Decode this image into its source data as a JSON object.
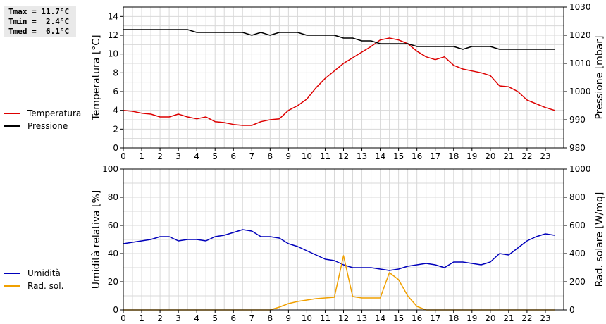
{
  "stats": {
    "tmax": "Tmax = 11.7°C",
    "tmin": "Tmin =  2.4°C",
    "tmed": "Tmed =  6.1°C"
  },
  "colors": {
    "temperature": "#dd0000",
    "pressure": "#000000",
    "humidity": "#0000bb",
    "radiation": "#f0a000",
    "grid": "#d8d8d8"
  },
  "chart_data": [
    {
      "type": "line",
      "xlim": [
        0,
        24
      ],
      "x_ticks": [
        0,
        1,
        2,
        3,
        4,
        5,
        6,
        7,
        8,
        9,
        10,
        11,
        12,
        13,
        14,
        15,
        16,
        17,
        18,
        19,
        20,
        21,
        22,
        23
      ],
      "grid": true,
      "ylabel": "Temperatura [°C]",
      "ylim": [
        0,
        15
      ],
      "y_ticks": [
        0,
        2,
        4,
        6,
        8,
        10,
        12,
        14
      ],
      "ylabel_right": "Pressione [mbar]",
      "ylim_right": [
        980,
        1030
      ],
      "y_ticks_right": [
        980,
        990,
        1000,
        1010,
        1020,
        1030
      ],
      "legend": [
        "Temperatura",
        "Pressione"
      ],
      "series": [
        {
          "name": "Temperatura",
          "axis": "left",
          "x": [
            0,
            0.5,
            1,
            1.5,
            2,
            2.5,
            3,
            3.5,
            4,
            4.5,
            5,
            5.5,
            6,
            6.5,
            7,
            7.5,
            8,
            8.5,
            9,
            9.5,
            10,
            10.5,
            11,
            11.5,
            12,
            12.5,
            13,
            13.5,
            14,
            14.5,
            15,
            15.5,
            16,
            16.5,
            17,
            17.5,
            18,
            18.5,
            19,
            19.5,
            20,
            20.5,
            21,
            21.5,
            22,
            22.5,
            23,
            23.5
          ],
          "y": [
            4.0,
            3.9,
            3.7,
            3.6,
            3.3,
            3.3,
            3.6,
            3.3,
            3.1,
            3.3,
            2.8,
            2.7,
            2.5,
            2.4,
            2.4,
            2.8,
            3.0,
            3.1,
            4.0,
            4.5,
            5.2,
            6.4,
            7.4,
            8.2,
            9.0,
            9.6,
            10.2,
            10.8,
            11.5,
            11.7,
            11.5,
            11.1,
            10.3,
            9.7,
            9.4,
            9.7,
            8.8,
            8.4,
            8.2,
            8.0,
            7.7,
            6.6,
            6.5,
            6.0,
            5.1,
            4.7,
            4.3,
            4.0
          ]
        },
        {
          "name": "Pressione",
          "axis": "right",
          "x": [
            0,
            0.5,
            1,
            1.5,
            2,
            2.5,
            3,
            3.5,
            4,
            4.5,
            5,
            5.5,
            6,
            6.5,
            7,
            7.5,
            8,
            8.5,
            9,
            9.5,
            10,
            10.5,
            11,
            11.5,
            12,
            12.5,
            13,
            13.5,
            14,
            14.5,
            15,
            15.5,
            16,
            16.5,
            17,
            17.5,
            18,
            18.5,
            19,
            19.5,
            20,
            20.5,
            21,
            21.5,
            22,
            22.5,
            23,
            23.5
          ],
          "y": [
            1022,
            1022,
            1022,
            1022,
            1022,
            1022,
            1022,
            1022,
            1021,
            1021,
            1021,
            1021,
            1021,
            1021,
            1020,
            1021,
            1020,
            1021,
            1021,
            1021,
            1020,
            1020,
            1020,
            1020,
            1019,
            1019,
            1018,
            1018,
            1017,
            1017,
            1017,
            1017,
            1016,
            1016,
            1016,
            1016,
            1016,
            1015,
            1016,
            1016,
            1016,
            1015,
            1015,
            1015,
            1015,
            1015,
            1015,
            1015
          ]
        }
      ]
    },
    {
      "type": "line",
      "xlim": [
        0,
        24
      ],
      "x_ticks": [
        0,
        1,
        2,
        3,
        4,
        5,
        6,
        7,
        8,
        9,
        10,
        11,
        12,
        13,
        14,
        15,
        16,
        17,
        18,
        19,
        20,
        21,
        22,
        23
      ],
      "grid": true,
      "ylabel": "Umidità relativa [%]",
      "ylim": [
        0,
        100
      ],
      "y_ticks": [
        0,
        20,
        40,
        60,
        80,
        100
      ],
      "ylabel_right": "Rad. solare [W/mq]",
      "ylim_right": [
        0,
        1000
      ],
      "y_ticks_right": [
        0,
        200,
        400,
        600,
        800,
        1000
      ],
      "legend": [
        "Umidità",
        "Rad. sol."
      ],
      "series": [
        {
          "name": "Umidità",
          "axis": "left",
          "x": [
            0,
            0.5,
            1,
            1.5,
            2,
            2.5,
            3,
            3.5,
            4,
            4.5,
            5,
            5.5,
            6,
            6.5,
            7,
            7.5,
            8,
            8.5,
            9,
            9.5,
            10,
            10.5,
            11,
            11.5,
            12,
            12.5,
            13,
            13.5,
            14,
            14.5,
            15,
            15.5,
            16,
            16.5,
            17,
            17.5,
            18,
            18.5,
            19,
            19.5,
            20,
            20.5,
            21,
            21.5,
            22,
            22.5,
            23,
            23.5
          ],
          "y": [
            47,
            48,
            49,
            50,
            52,
            52,
            49,
            50,
            50,
            49,
            52,
            53,
            55,
            57,
            56,
            52,
            52,
            51,
            47,
            45,
            42,
            39,
            36,
            35,
            32,
            30,
            30,
            30,
            29,
            28,
            29,
            31,
            32,
            33,
            32,
            30,
            34,
            34,
            33,
            32,
            34,
            40,
            39,
            44,
            49,
            52,
            54,
            53
          ]
        },
        {
          "name": "Rad. sol.",
          "axis": "right",
          "x": [
            0,
            0.5,
            1,
            1.5,
            2,
            2.5,
            3,
            3.5,
            4,
            4.5,
            5,
            5.5,
            6,
            6.5,
            7,
            7.5,
            8,
            8.5,
            9,
            9.5,
            10,
            10.5,
            11,
            11.5,
            12,
            12.5,
            13,
            13.5,
            14,
            14.5,
            15,
            15.5,
            16,
            16.5,
            17,
            17.5,
            18,
            18.5,
            19,
            19.5,
            20,
            20.5,
            21,
            21.5,
            22,
            22.5,
            23,
            23.5
          ],
          "y": [
            0,
            0,
            0,
            0,
            0,
            0,
            0,
            0,
            0,
            0,
            0,
            0,
            0,
            0,
            0,
            0,
            0,
            20,
            45,
            60,
            70,
            80,
            85,
            90,
            385,
            95,
            85,
            85,
            85,
            265,
            215,
            100,
            25,
            0,
            0,
            0,
            0,
            0,
            0,
            0,
            0,
            0,
            0,
            0,
            0,
            0,
            0,
            0
          ]
        }
      ]
    }
  ]
}
